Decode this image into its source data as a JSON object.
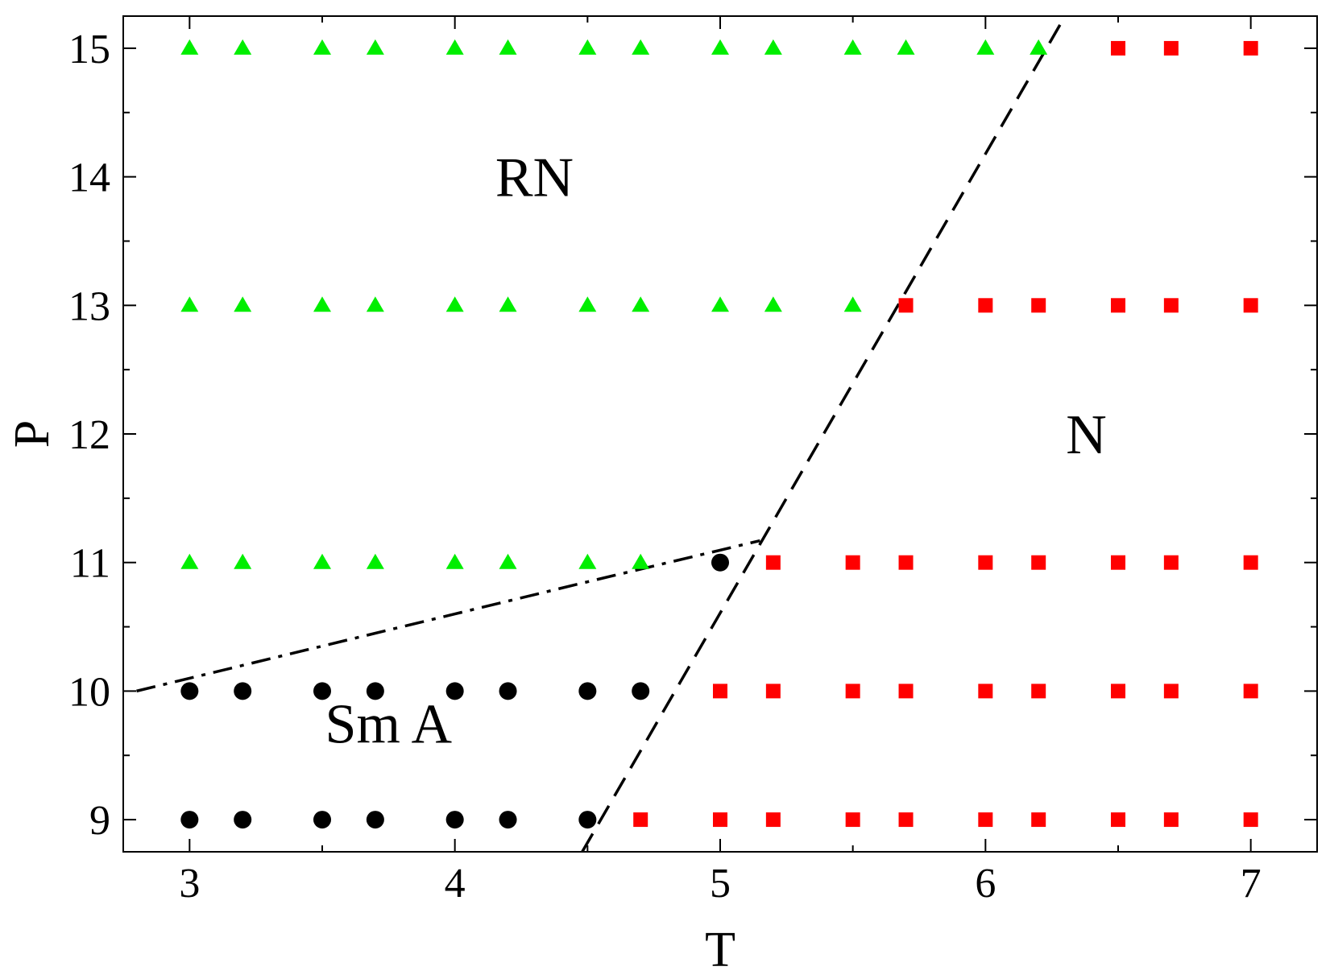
{
  "chart_data": {
    "type": "scatter",
    "xlabel": "T",
    "ylabel": "P",
    "xlim": [
      2.75,
      7.25
    ],
    "ylim": [
      8.75,
      15.25
    ],
    "xticks": [
      3,
      4,
      5,
      6,
      7
    ],
    "yticks": [
      9,
      10,
      11,
      12,
      13,
      14,
      15
    ],
    "x_minor_step": 0.5,
    "y_minor_step": 0.5,
    "grid": false,
    "series": [
      {
        "marker": "circle",
        "color": "#000000",
        "points": [
          [
            3.0,
            9
          ],
          [
            3.2,
            9
          ],
          [
            3.5,
            9
          ],
          [
            3.7,
            9
          ],
          [
            4.0,
            9
          ],
          [
            4.2,
            9
          ],
          [
            4.5,
            9
          ],
          [
            3.0,
            10
          ],
          [
            3.2,
            10
          ],
          [
            3.5,
            10
          ],
          [
            3.7,
            10
          ],
          [
            4.0,
            10
          ],
          [
            4.2,
            10
          ],
          [
            4.5,
            10
          ],
          [
            4.7,
            10
          ],
          [
            5.0,
            11
          ]
        ]
      },
      {
        "marker": "triangle",
        "color": "#00ee00",
        "points": [
          [
            3.0,
            11
          ],
          [
            3.2,
            11
          ],
          [
            3.5,
            11
          ],
          [
            3.7,
            11
          ],
          [
            4.0,
            11
          ],
          [
            4.2,
            11
          ],
          [
            4.5,
            11
          ],
          [
            4.7,
            11
          ],
          [
            3.0,
            13
          ],
          [
            3.2,
            13
          ],
          [
            3.5,
            13
          ],
          [
            3.7,
            13
          ],
          [
            4.0,
            13
          ],
          [
            4.2,
            13
          ],
          [
            4.5,
            13
          ],
          [
            4.7,
            13
          ],
          [
            5.0,
            13
          ],
          [
            5.2,
            13
          ],
          [
            5.5,
            13
          ],
          [
            3.0,
            15
          ],
          [
            3.2,
            15
          ],
          [
            3.5,
            15
          ],
          [
            3.7,
            15
          ],
          [
            4.0,
            15
          ],
          [
            4.2,
            15
          ],
          [
            4.5,
            15
          ],
          [
            4.7,
            15
          ],
          [
            5.0,
            15
          ],
          [
            5.2,
            15
          ],
          [
            5.5,
            15
          ],
          [
            5.7,
            15
          ],
          [
            6.0,
            15
          ],
          [
            6.2,
            15
          ]
        ]
      },
      {
        "marker": "square",
        "color": "#ff0000",
        "points": [
          [
            4.7,
            9
          ],
          [
            5.0,
            9
          ],
          [
            5.2,
            9
          ],
          [
            5.5,
            9
          ],
          [
            5.7,
            9
          ],
          [
            6.0,
            9
          ],
          [
            6.2,
            9
          ],
          [
            6.5,
            9
          ],
          [
            6.7,
            9
          ],
          [
            7.0,
            9
          ],
          [
            5.0,
            10
          ],
          [
            5.2,
            10
          ],
          [
            5.5,
            10
          ],
          [
            5.7,
            10
          ],
          [
            6.0,
            10
          ],
          [
            6.2,
            10
          ],
          [
            6.5,
            10
          ],
          [
            6.7,
            10
          ],
          [
            7.0,
            10
          ],
          [
            5.2,
            11
          ],
          [
            5.5,
            11
          ],
          [
            5.7,
            11
          ],
          [
            6.0,
            11
          ],
          [
            6.2,
            11
          ],
          [
            6.5,
            11
          ],
          [
            6.7,
            11
          ],
          [
            7.0,
            11
          ],
          [
            5.7,
            13
          ],
          [
            6.0,
            13
          ],
          [
            6.2,
            13
          ],
          [
            6.5,
            13
          ],
          [
            6.7,
            13
          ],
          [
            7.0,
            13
          ],
          [
            6.5,
            15
          ],
          [
            6.7,
            15
          ],
          [
            7.0,
            15
          ]
        ]
      }
    ],
    "lines": [
      {
        "style": "dashed",
        "color": "#000000",
        "points": [
          [
            4.48,
            8.75
          ],
          [
            6.3,
            15.25
          ]
        ]
      },
      {
        "style": "dashdot",
        "color": "#000000",
        "points": [
          [
            2.8,
            10.0
          ],
          [
            3.5,
            10.35
          ],
          [
            4.0,
            10.6
          ],
          [
            4.5,
            10.85
          ],
          [
            5.15,
            11.17
          ]
        ]
      }
    ],
    "annotations": [
      {
        "text": "RN",
        "x": 4.3,
        "y": 13.85
      },
      {
        "text": "N",
        "x": 6.38,
        "y": 11.85
      },
      {
        "text": "Sm A",
        "x": 3.75,
        "y": 9.6
      }
    ]
  }
}
